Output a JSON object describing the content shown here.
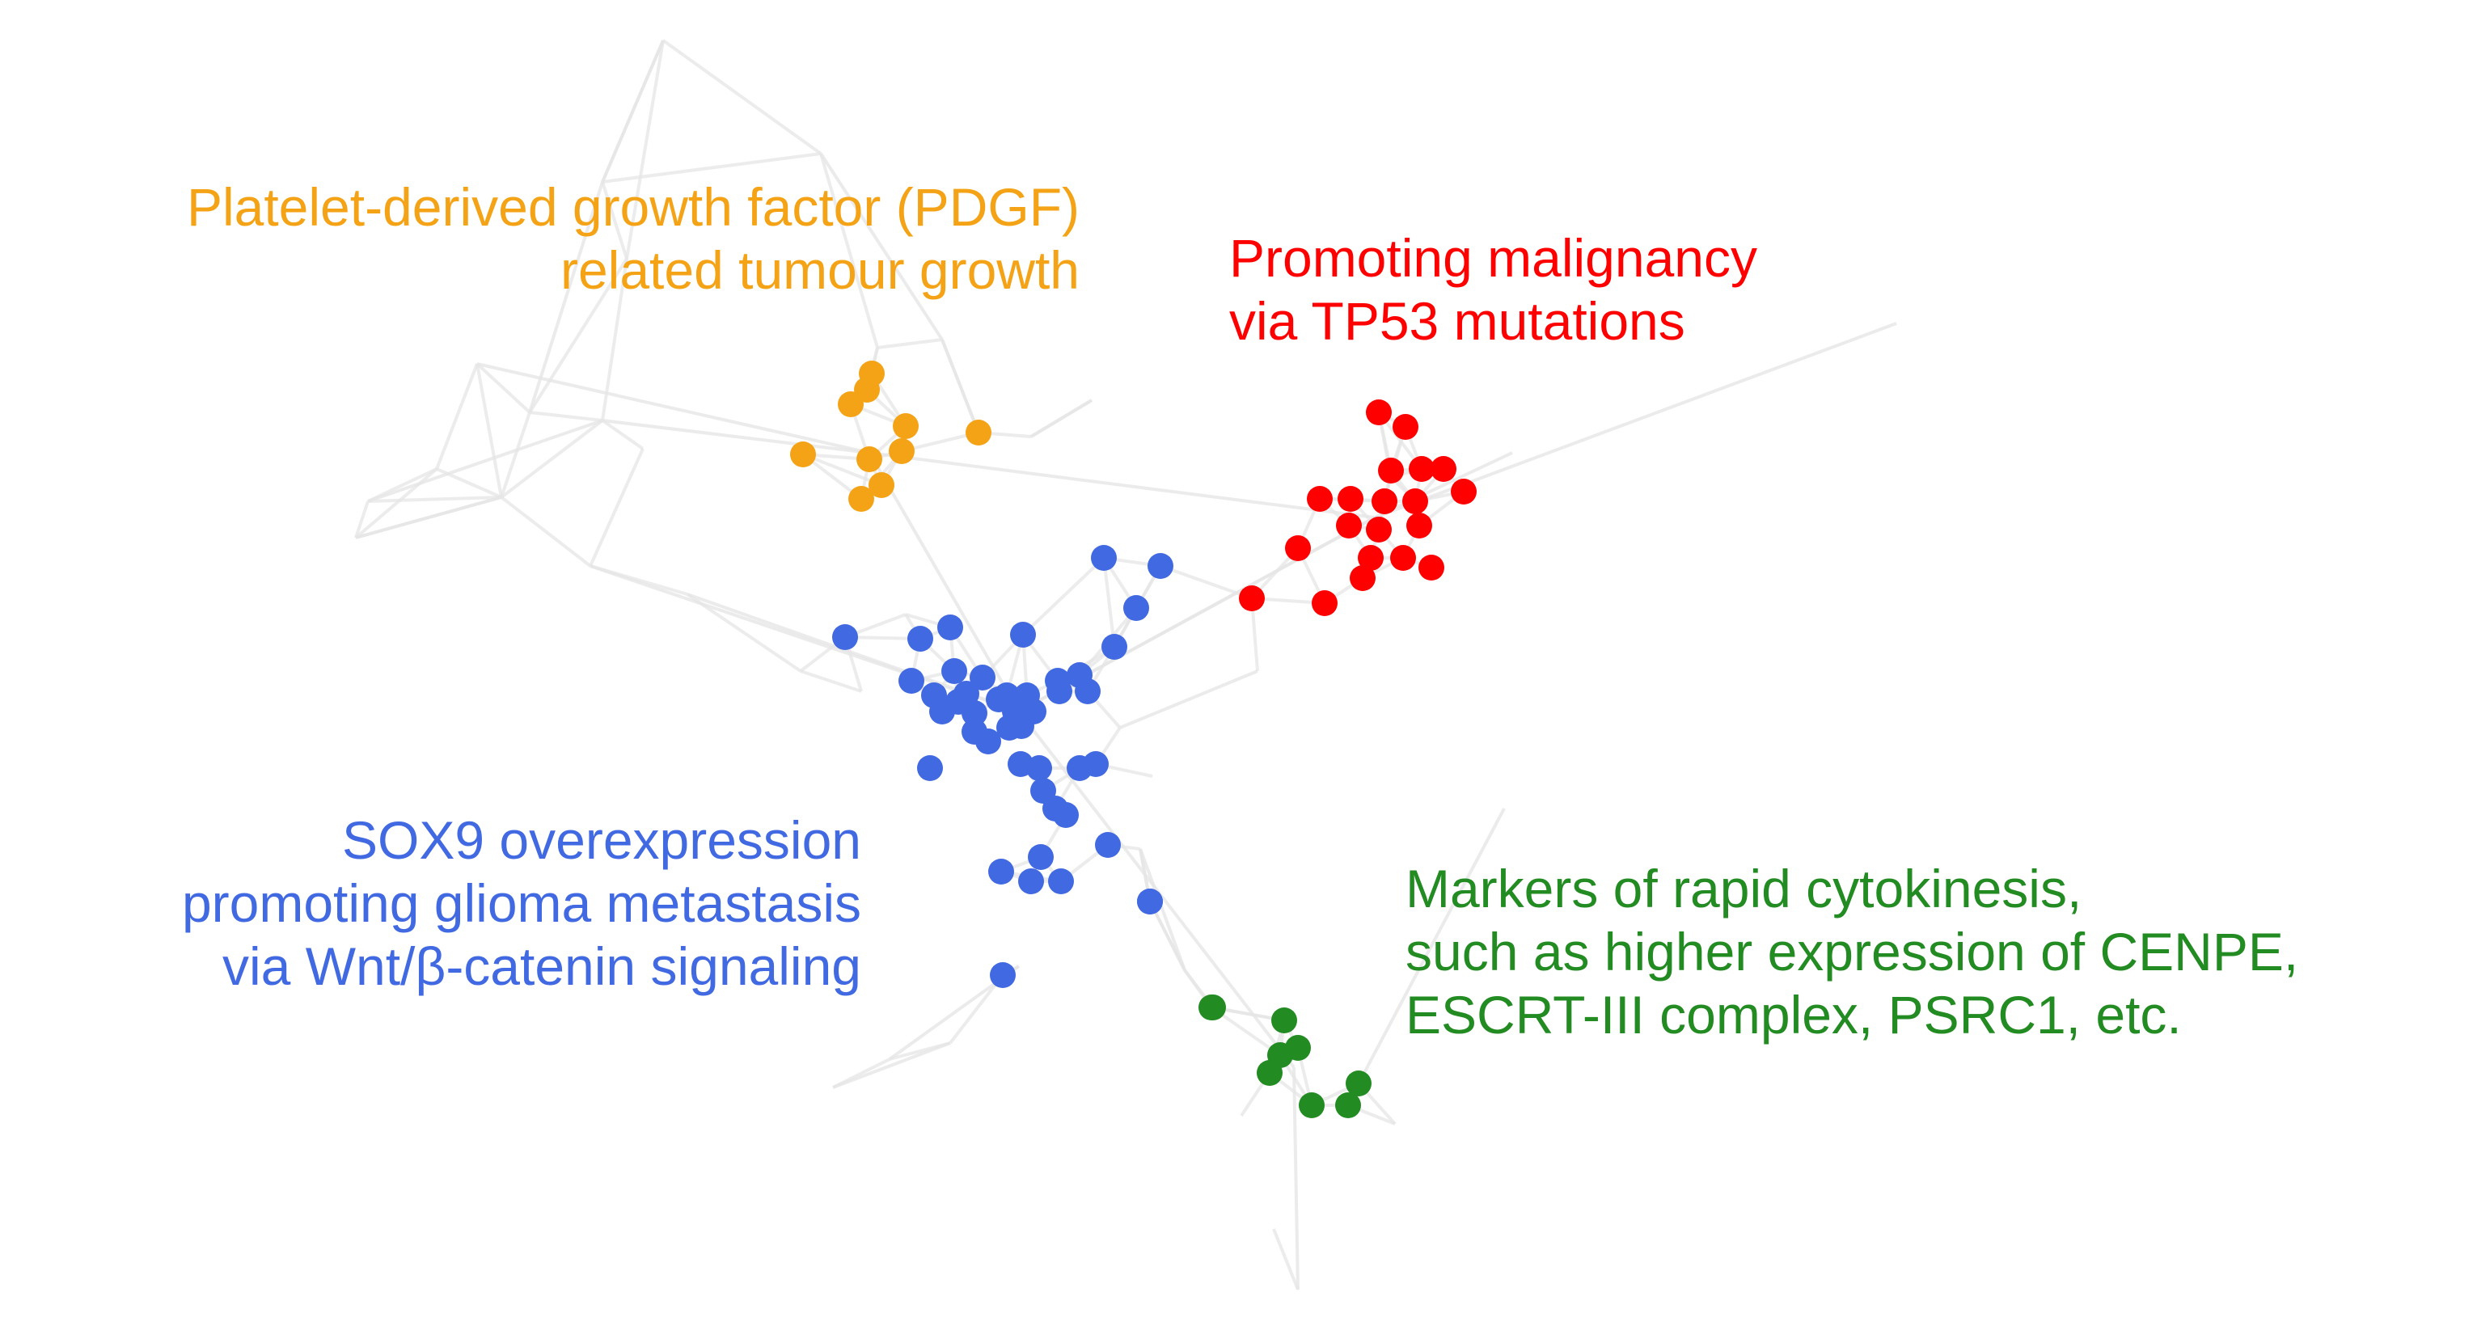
{
  "colors": {
    "edge": "#e6e6e6",
    "pdgf": "#f5a316",
    "tp53": "#ff0000",
    "sox9": "#4169e1",
    "cytokinesis": "#228b22"
  },
  "clusters": {
    "pdgf": {
      "label_lines": [
        "Platelet-derived growth factor (PDGF)",
        "related tumour growth"
      ],
      "node_count": 10
    },
    "tp53": {
      "label_lines": [
        "Promoting malignancy",
        "via TP53 mutations"
      ],
      "node_count": 20
    },
    "sox9": {
      "label_lines": [
        "SOX9 overexpression",
        "promoting glioma metastasis",
        "via Wnt/β-catenin signaling"
      ],
      "node_count": 44
    },
    "cytokinesis": {
      "label_lines": [
        "Markers of rapid cytokinesis,",
        "such as higher expression of CENPE,",
        "ESCRT-III complex, PSRC1, etc."
      ],
      "node_count": 9
    }
  }
}
